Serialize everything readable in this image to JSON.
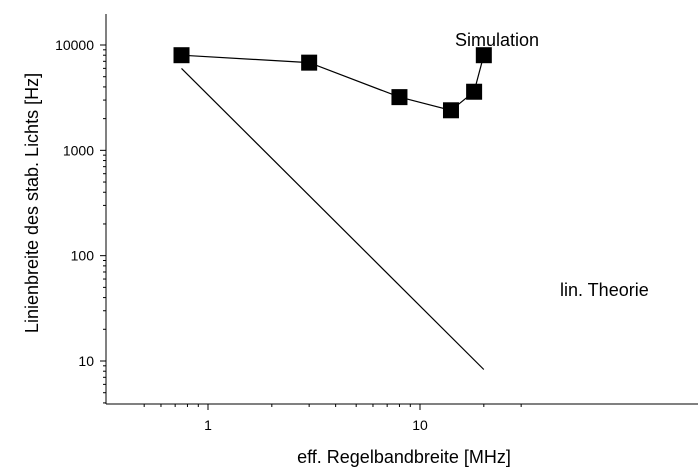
{
  "chart_data": {
    "type": "line",
    "title": "",
    "xlabel": "eff. Regelbandbreite [MHz]",
    "ylabel": "Linienbreite des stab. Lichts [Hz]",
    "x_scale": "log",
    "y_scale": "log",
    "xlim": [
      0.5,
      30
    ],
    "ylim": [
      4,
      18000
    ],
    "x_ticks": [
      {
        "value": 1,
        "label": "1"
      },
      {
        "value": 10,
        "label": "10"
      }
    ],
    "y_ticks": [
      {
        "value": 10,
        "label": "10"
      },
      {
        "value": 100,
        "label": "100"
      },
      {
        "value": 1000,
        "label": "1000"
      },
      {
        "value": 10000,
        "label": "10000"
      }
    ],
    "grid": false,
    "series": [
      {
        "name": "Simulation",
        "marker": "square",
        "x": [
          0.75,
          3,
          8,
          14,
          18,
          20
        ],
        "y": [
          8000,
          6800,
          3200,
          2400,
          3600,
          8000
        ]
      },
      {
        "name": "lin. Theorie",
        "marker": "none",
        "x": [
          0.75,
          20
        ],
        "y": [
          6000,
          8.3
        ]
      }
    ],
    "annotations": [
      {
        "text": "Simulation",
        "series": "Simulation"
      },
      {
        "text": "lin. Theorie",
        "series": "lin. Theorie"
      }
    ],
    "colors": {
      "line": "#000000",
      "marker": "#000000"
    }
  }
}
